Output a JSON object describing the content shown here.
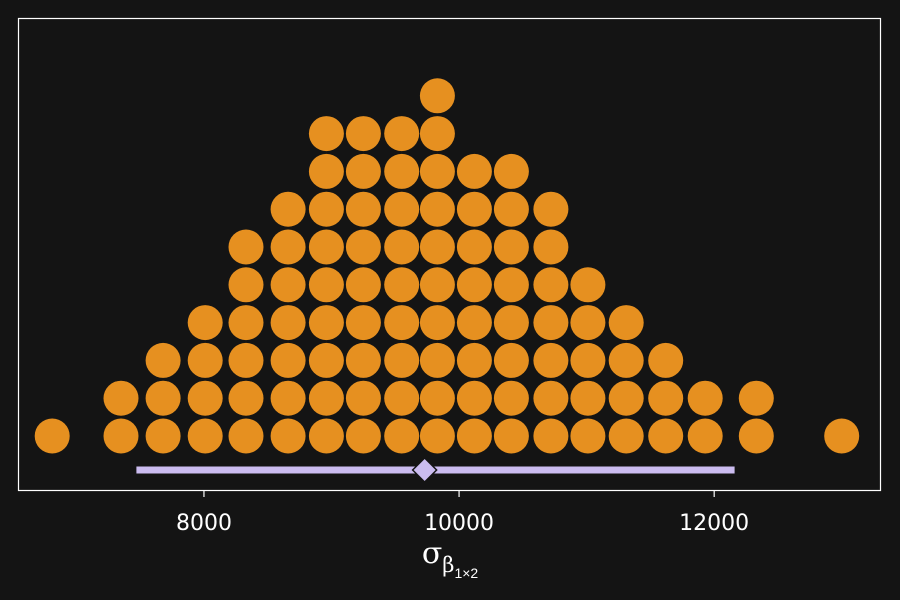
{
  "chart_data": {
    "type": "dotplot",
    "xlim": [
      6550,
      13300
    ],
    "dot_color": "#e69020",
    "interval_color": "#cbbcf0",
    "background": "#141414",
    "frame_color": "#ffffff",
    "grid": false,
    "legend": "none",
    "x_ticks": [
      8000,
      10000,
      12000
    ],
    "x_tick_labels": [
      "8000",
      "10000",
      "12000"
    ],
    "xlabel": {
      "symbol": "σ",
      "subscript": "β",
      "sub_subscript": "1×2"
    },
    "columns": [
      {
        "x": 6810,
        "count": 1
      },
      {
        "x": 7350,
        "count": 2
      },
      {
        "x": 7680,
        "count": 3
      },
      {
        "x": 8010,
        "count": 4
      },
      {
        "x": 8330,
        "count": 6
      },
      {
        "x": 8660,
        "count": 7
      },
      {
        "x": 8960,
        "count": 9
      },
      {
        "x": 9250,
        "count": 9
      },
      {
        "x": 9550,
        "count": 9
      },
      {
        "x": 9830,
        "count": 10
      },
      {
        "x": 10120,
        "count": 8
      },
      {
        "x": 10410,
        "count": 8
      },
      {
        "x": 10720,
        "count": 7
      },
      {
        "x": 11010,
        "count": 5
      },
      {
        "x": 11310,
        "count": 4
      },
      {
        "x": 11620,
        "count": 3
      },
      {
        "x": 11930,
        "count": 2
      },
      {
        "x": 12330,
        "count": 2
      },
      {
        "x": 13000,
        "count": 1
      }
    ],
    "interval": {
      "low": 7470,
      "high": 12160,
      "point": 9730
    }
  }
}
